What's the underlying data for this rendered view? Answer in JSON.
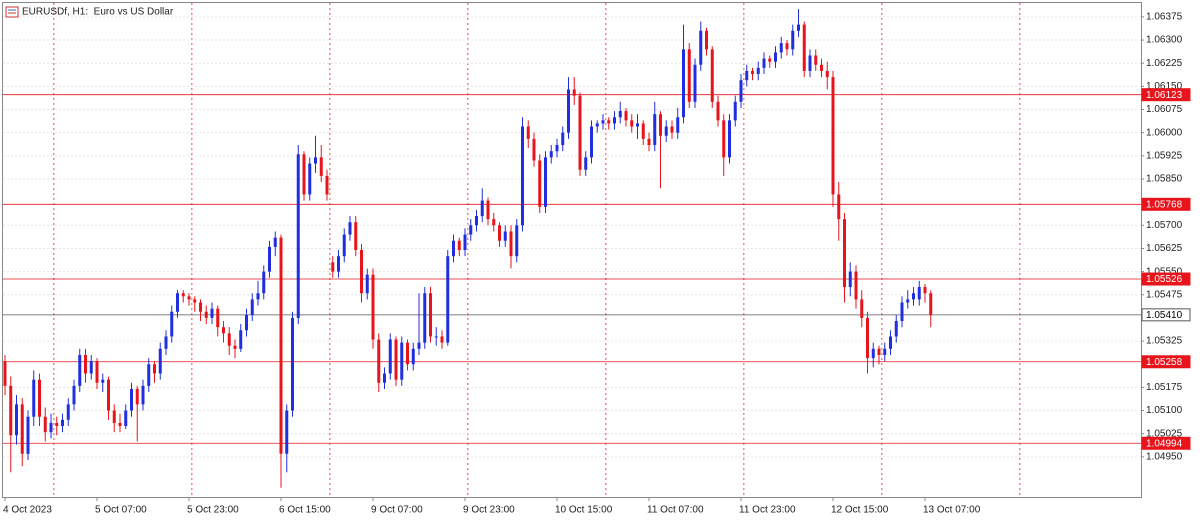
{
  "chart_data": {
    "type": "candlestick",
    "title": "EURUSDf, H1:  Euro vs US Dollar",
    "up_color": "#1f2fe0",
    "down_color": "#e8141c",
    "grid": true,
    "ylim": [
      1.0482,
      1.0642
    ],
    "yticks": [
      1.06375,
      {
        "value": 1.063,
        "label": "1.06300"
      },
      1.06225,
      {
        "value": 1.0615,
        "label": "1.06150"
      },
      1.06075,
      {
        "value": 1.06,
        "label": "1.06000"
      },
      1.05925,
      {
        "value": 1.0585,
        "label": "1.05850"
      },
      {
        "value": 1.057,
        "label": "1.05700"
      },
      1.05625,
      {
        "value": 1.0555,
        "label": "1.05550"
      },
      1.05475,
      1.05325,
      1.05175,
      {
        "value": 1.051,
        "label": "1.05100"
      },
      1.05025,
      {
        "value": 1.0495,
        "label": "1.04950"
      }
    ],
    "price_lines": [
      {
        "value": 1.06123,
        "color": "#e8141c"
      },
      {
        "value": 1.05768,
        "color": "#e8141c"
      },
      {
        "value": 1.05526,
        "color": "#e8141c"
      },
      {
        "value": 1.0541,
        "label": "1.05410",
        "color": "#555555"
      },
      {
        "value": 1.05258,
        "color": "#e8141c"
      },
      {
        "value": 1.04994,
        "color": "#e8141c"
      }
    ],
    "categories": [
      "4 Oct 2023",
      null,
      null,
      null,
      null,
      null,
      null,
      null,
      null,
      null,
      null,
      null,
      null,
      null,
      null,
      null,
      "5 Oct 07:00",
      null,
      null,
      null,
      null,
      null,
      null,
      null,
      null,
      null,
      null,
      null,
      null,
      null,
      null,
      null,
      "5 Oct 23:00",
      null,
      null,
      null,
      null,
      null,
      null,
      null,
      null,
      null,
      null,
      null,
      null,
      null,
      null,
      null,
      "6 Oct 15:00",
      null,
      null,
      null,
      null,
      null,
      null,
      null,
      null,
      null,
      null,
      null,
      null,
      null,
      null,
      null,
      "9 Oct 07:00",
      null,
      null,
      null,
      null,
      null,
      null,
      null,
      null,
      null,
      null,
      null,
      null,
      null,
      null,
      null,
      "9 Oct 23:00",
      null,
      null,
      null,
      null,
      null,
      null,
      null,
      null,
      null,
      null,
      null,
      null,
      null,
      null,
      null,
      "10 Oct 15:00",
      null,
      null,
      null,
      null,
      null,
      null,
      null,
      null,
      null,
      null,
      null,
      null,
      null,
      null,
      null,
      "11 Oct 07:00",
      null,
      null,
      null,
      null,
      null,
      null,
      null,
      null,
      null,
      null,
      null,
      null,
      null,
      null,
      null,
      "11 Oct 23:00",
      null,
      null,
      null,
      null,
      null,
      null,
      null,
      null,
      null,
      null,
      null,
      null,
      null,
      null,
      null,
      "12 Oct 15:00",
      null,
      null,
      null,
      null,
      null,
      null,
      null,
      null,
      null,
      null,
      null,
      null,
      null,
      null,
      null,
      "13 Oct 07:00",
      null
    ],
    "ohlc": [
      [
        1.0526,
        1.0528,
        1.0515,
        1.0518
      ],
      [
        1.0518,
        1.0521,
        1.049,
        1.0502
      ],
      [
        1.0502,
        1.0515,
        1.0499,
        1.0512
      ],
      [
        1.0512,
        1.0514,
        1.0492,
        1.0496
      ],
      [
        1.0496,
        1.051,
        1.0494,
        1.0508
      ],
      [
        1.0508,
        1.0523,
        1.0505,
        1.052
      ],
      [
        1.052,
        1.0522,
        1.0505,
        1.0508
      ],
      [
        1.0508,
        1.0511,
        1.05,
        1.0503
      ],
      [
        1.0503,
        1.0509,
        1.0501,
        1.0506
      ],
      [
        1.0506,
        1.0508,
        1.0502,
        1.0505
      ],
      [
        1.0505,
        1.0509,
        1.0503,
        1.0507
      ],
      [
        1.0507,
        1.0514,
        1.0505,
        1.0512
      ],
      [
        1.0512,
        1.052,
        1.051,
        1.0518
      ],
      [
        1.0518,
        1.053,
        1.0516,
        1.0528
      ],
      [
        1.0528,
        1.053,
        1.0519,
        1.0522
      ],
      [
        1.0522,
        1.0528,
        1.052,
        1.0526
      ],
      [
        1.0526,
        1.0527,
        1.0517,
        1.0519
      ],
      [
        1.0519,
        1.0522,
        1.0516,
        1.052
      ],
      [
        1.052,
        1.0521,
        1.0507,
        1.051
      ],
      [
        1.051,
        1.0512,
        1.0503,
        1.0506
      ],
      [
        1.0506,
        1.0509,
        1.0503,
        1.0505
      ],
      [
        1.0505,
        1.0512,
        1.0504,
        1.051
      ],
      [
        1.051,
        1.0519,
        1.0508,
        1.0517
      ],
      [
        1.0517,
        1.0518,
        1.05,
        1.0512
      ],
      [
        1.0512,
        1.052,
        1.051,
        1.0518
      ],
      [
        1.0518,
        1.0527,
        1.0516,
        1.0525
      ],
      [
        1.0525,
        1.0526,
        1.0519,
        1.0522
      ],
      [
        1.0522,
        1.0532,
        1.052,
        1.053
      ],
      [
        1.053,
        1.0536,
        1.0528,
        1.0534
      ],
      [
        1.0534,
        1.0544,
        1.0532,
        1.0542
      ],
      [
        1.0542,
        1.0549,
        1.054,
        1.0548
      ],
      [
        1.0548,
        1.0549,
        1.0545,
        1.0547
      ],
      [
        1.0547,
        1.0548,
        1.0544,
        1.0546
      ],
      [
        1.0546,
        1.0547,
        1.0542,
        1.0545
      ],
      [
        1.0545,
        1.0546,
        1.0539,
        1.0542
      ],
      [
        1.0542,
        1.0544,
        1.0538,
        1.054
      ],
      [
        1.054,
        1.0545,
        1.0538,
        1.0543
      ],
      [
        1.0543,
        1.0544,
        1.0534,
        1.0537
      ],
      [
        1.0537,
        1.0539,
        1.0532,
        1.0535
      ],
      [
        1.0535,
        1.0537,
        1.0528,
        1.0531
      ],
      [
        1.0531,
        1.0533,
        1.0527,
        1.053
      ],
      [
        1.053,
        1.0538,
        1.0529,
        1.0536
      ],
      [
        1.0536,
        1.0543,
        1.0534,
        1.0541
      ],
      [
        1.0541,
        1.0548,
        1.0539,
        1.0546
      ],
      [
        1.0546,
        1.0552,
        1.0544,
        1.0548
      ],
      [
        1.0548,
        1.0557,
        1.0546,
        1.0555
      ],
      [
        1.0555,
        1.0565,
        1.0553,
        1.0563
      ],
      [
        1.0563,
        1.0568,
        1.056,
        1.0566
      ],
      [
        1.0566,
        1.0567,
        1.0485,
        1.0496
      ],
      [
        1.0496,
        1.0512,
        1.049,
        1.051
      ],
      [
        1.051,
        1.0542,
        1.0508,
        1.054
      ],
      [
        1.054,
        1.0596,
        1.0538,
        1.0593
      ],
      [
        1.0593,
        1.0594,
        1.0578,
        1.058
      ],
      [
        1.058,
        1.0592,
        1.0578,
        1.059
      ],
      [
        1.059,
        1.0599,
        1.0587,
        1.0592
      ],
      [
        1.0592,
        1.0596,
        1.0584,
        1.0586
      ],
      [
        1.0586,
        1.0588,
        1.0578,
        1.058
      ],
      [
        1.0558,
        1.056,
        1.0553,
        1.0555
      ],
      [
        1.0555,
        1.0562,
        1.0553,
        1.056
      ],
      [
        1.056,
        1.0569,
        1.0558,
        1.0567
      ],
      [
        1.0567,
        1.0573,
        1.0565,
        1.0571
      ],
      [
        1.0571,
        1.0573,
        1.056,
        1.0562
      ],
      [
        1.0562,
        1.0564,
        1.0545,
        1.0548
      ],
      [
        1.0548,
        1.0556,
        1.0546,
        1.0554
      ],
      [
        1.0554,
        1.0556,
        1.053,
        1.0533
      ],
      [
        1.0533,
        1.0535,
        1.0516,
        1.0519
      ],
      [
        1.0519,
        1.0524,
        1.0517,
        1.0522
      ],
      [
        1.0522,
        1.0535,
        1.052,
        1.0533
      ],
      [
        1.0533,
        1.0534,
        1.0518,
        1.052
      ],
      [
        1.052,
        1.0534,
        1.0518,
        1.0532
      ],
      [
        1.0532,
        1.0533,
        1.0523,
        1.0525
      ],
      [
        1.0525,
        1.0532,
        1.0523,
        1.053
      ],
      [
        1.053,
        1.0548,
        1.0528,
        1.0532
      ],
      [
        1.0532,
        1.055,
        1.053,
        1.0548
      ],
      [
        1.0548,
        1.055,
        1.0532,
        1.0534
      ],
      [
        1.0534,
        1.0537,
        1.0531,
        1.0534
      ],
      [
        1.0534,
        1.0536,
        1.053,
        1.0532
      ],
      [
        1.0532,
        1.0562,
        1.0531,
        1.056
      ],
      [
        1.056,
        1.0567,
        1.0558,
        1.0565
      ],
      [
        1.0565,
        1.0566,
        1.056,
        1.0562
      ],
      [
        1.0562,
        1.0569,
        1.056,
        1.0567
      ],
      [
        1.0567,
        1.0572,
        1.0565,
        1.057
      ],
      [
        1.057,
        1.0575,
        1.0568,
        1.0573
      ],
      [
        1.0573,
        1.0582,
        1.0571,
        1.0578
      ],
      [
        1.0578,
        1.0579,
        1.057,
        1.0572
      ],
      [
        1.0572,
        1.0574,
        1.0568,
        1.057
      ],
      [
        1.057,
        1.0571,
        1.0563,
        1.0565
      ],
      [
        1.0565,
        1.057,
        1.0563,
        1.0568
      ],
      [
        1.0568,
        1.057,
        1.0556,
        1.056
      ],
      [
        1.056,
        1.0572,
        1.0558,
        1.057
      ],
      [
        1.057,
        1.0605,
        1.0568,
        1.0602
      ],
      [
        1.0602,
        1.0604,
        1.0595,
        1.0598
      ],
      [
        1.0598,
        1.06,
        1.0589,
        1.0591
      ],
      [
        1.0591,
        1.0593,
        1.0574,
        1.0576
      ],
      [
        1.0576,
        1.0594,
        1.0574,
        1.0592
      ],
      [
        1.0592,
        1.0596,
        1.059,
        1.0594
      ],
      [
        1.0594,
        1.0598,
        1.0592,
        1.0596
      ],
      [
        1.0596,
        1.0602,
        1.0594,
        1.06
      ],
      [
        1.06,
        1.0618,
        1.0598,
        1.0614
      ],
      [
        1.0614,
        1.0618,
        1.0609,
        1.0612
      ],
      [
        1.0612,
        1.0613,
        1.0586,
        1.0588
      ],
      [
        1.0588,
        1.0594,
        1.0586,
        1.0592
      ],
      [
        1.0592,
        1.0604,
        1.059,
        1.0602
      ],
      [
        1.0602,
        1.0604,
        1.06,
        1.0603
      ],
      [
        1.0603,
        1.0606,
        1.0601,
        1.0604
      ],
      [
        1.0604,
        1.0605,
        1.0601,
        1.0603
      ],
      [
        1.0603,
        1.0607,
        1.0601,
        1.0605
      ],
      [
        1.0605,
        1.061,
        1.0603,
        1.0607
      ],
      [
        1.0607,
        1.0608,
        1.0602,
        1.0604
      ],
      [
        1.0604,
        1.0606,
        1.06,
        1.0602
      ],
      [
        1.0602,
        1.0606,
        1.0598,
        1.0603
      ],
      [
        1.0603,
        1.0604,
        1.0596,
        1.0598
      ],
      [
        1.0598,
        1.06,
        1.0594,
        1.0596
      ],
      [
        1.0596,
        1.061,
        1.0594,
        1.0606
      ],
      [
        1.0606,
        1.0607,
        1.0582,
        1.0599
      ],
      [
        1.0599,
        1.0604,
        1.0597,
        1.0602
      ],
      [
        1.0602,
        1.0604,
        1.0598,
        1.06
      ],
      [
        1.06,
        1.0608,
        1.0598,
        1.0605
      ],
      [
        1.0605,
        1.0635,
        1.0603,
        1.0627
      ],
      [
        1.0627,
        1.0629,
        1.0608,
        1.061
      ],
      [
        1.061,
        1.0624,
        1.0608,
        1.0622
      ],
      [
        1.0622,
        1.0636,
        1.062,
        1.0633
      ],
      [
        1.0633,
        1.0634,
        1.0625,
        1.0627
      ],
      [
        1.0627,
        1.0628,
        1.0608,
        1.061
      ],
      [
        1.061,
        1.0612,
        1.0602,
        1.0604
      ],
      [
        1.0604,
        1.0606,
        1.0586,
        1.0592
      ],
      [
        1.0592,
        1.0606,
        1.059,
        1.0604
      ],
      [
        1.0604,
        1.0612,
        1.0602,
        1.061
      ],
      [
        1.061,
        1.0619,
        1.0608,
        1.0617
      ],
      [
        1.0617,
        1.0622,
        1.0615,
        1.062
      ],
      [
        1.062,
        1.0621,
        1.0617,
        1.0619
      ],
      [
        1.0619,
        1.0623,
        1.0617,
        1.0621
      ],
      [
        1.0621,
        1.0626,
        1.0619,
        1.0624
      ],
      [
        1.0624,
        1.0625,
        1.0621,
        1.0623
      ],
      [
        1.0623,
        1.0628,
        1.0621,
        1.0626
      ],
      [
        1.0626,
        1.0631,
        1.0624,
        1.0629
      ],
      [
        1.0629,
        1.063,
        1.0625,
        1.0627
      ],
      [
        1.0627,
        1.0635,
        1.0625,
        1.0633
      ],
      [
        1.0633,
        1.064,
        1.0631,
        1.0635
      ],
      [
        1.0635,
        1.0636,
        1.0618,
        1.062
      ],
      [
        1.062,
        1.0627,
        1.0618,
        1.0625
      ],
      [
        1.0625,
        1.0627,
        1.062,
        1.0622
      ],
      [
        1.0622,
        1.0624,
        1.0618,
        1.062
      ],
      [
        1.062,
        1.0623,
        1.0614,
        1.0618
      ],
      [
        1.0618,
        1.062,
        1.0576,
        1.058
      ],
      [
        1.058,
        1.0584,
        1.0565,
        1.0572
      ],
      [
        1.0572,
        1.0574,
        1.0545,
        1.055
      ],
      [
        1.055,
        1.0558,
        1.0547,
        1.0555
      ],
      [
        1.0555,
        1.0557,
        1.0543,
        1.0546
      ],
      [
        1.0546,
        1.0549,
        1.0537,
        1.054
      ],
      [
        1.054,
        1.0542,
        1.0522,
        1.0527
      ],
      [
        1.0527,
        1.0532,
        1.0524,
        1.053
      ],
      [
        1.053,
        1.0531,
        1.0525,
        1.0528
      ],
      [
        1.0528,
        1.0532,
        1.0526,
        1.053
      ],
      [
        1.053,
        1.0536,
        1.0528,
        1.0534
      ],
      [
        1.0534,
        1.0541,
        1.0532,
        1.0539
      ],
      [
        1.0539,
        1.0547,
        1.0537,
        1.0545
      ],
      [
        1.0545,
        1.0549,
        1.0543,
        1.0546
      ],
      [
        1.0546,
        1.055,
        1.0544,
        1.0548
      ],
      [
        1.0546,
        1.0552,
        1.0544,
        1.055
      ],
      [
        1.055,
        1.0551,
        1.0545,
        1.0548
      ],
      [
        1.0548,
        1.0549,
        1.0537,
        1.0541
      ]
    ]
  }
}
